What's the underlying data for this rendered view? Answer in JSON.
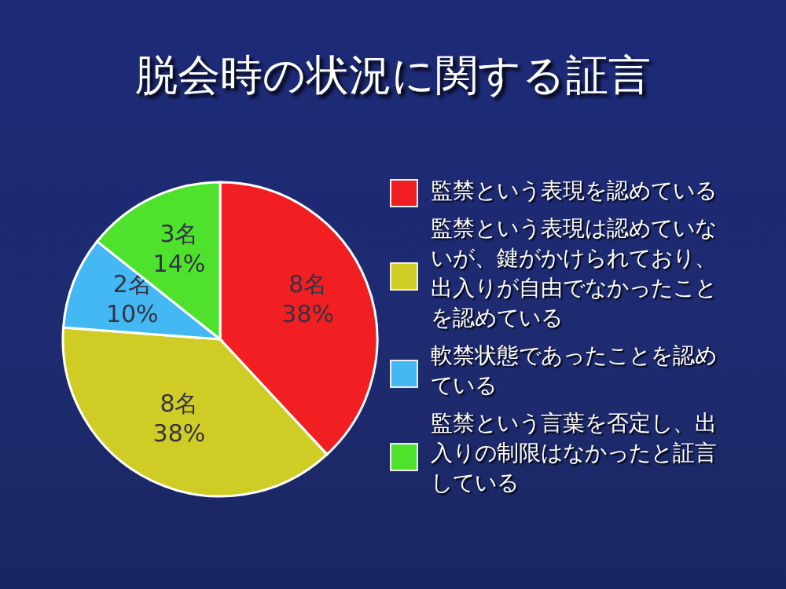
{
  "chart_data": {
    "type": "pie",
    "title": "脱会時の状況に関する証言",
    "categories": [
      "監禁という表現を認めている",
      "監禁という表現は認めていないが、鍵がかけられており、出入りが自由でなかったことを認めている",
      "軟禁状態であったことを認めている",
      "監禁という言葉を否定し、出入りの制限はなかったと証言している"
    ],
    "values": [
      8,
      8,
      2,
      3
    ],
    "colors": [
      "#f21f22",
      "#cfcd25",
      "#44b8f2",
      "#4ee22d"
    ],
    "value_labels": [
      "8名\n38%",
      "8名\n38%",
      "2名\n10%",
      "3名\n14%"
    ],
    "legend": "right"
  }
}
